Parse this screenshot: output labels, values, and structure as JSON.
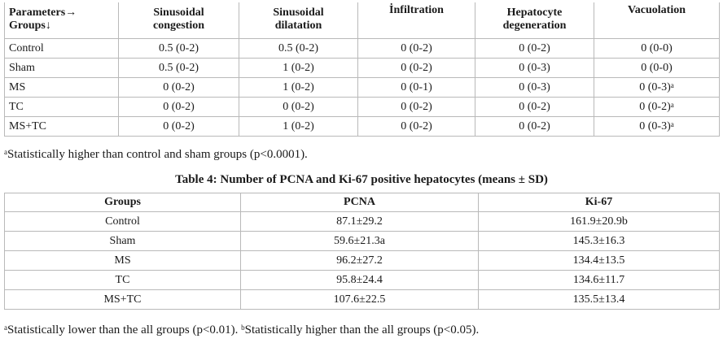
{
  "table3": {
    "headers": [
      {
        "line1": "Parameters→",
        "line2": "Groups↓"
      },
      {
        "line1": "Sinusoidal",
        "line2": "congestion"
      },
      {
        "line1": "Sinusoidal",
        "line2": "dilatation"
      },
      {
        "line1": "İnfiltration",
        "line2": ""
      },
      {
        "line1": "Hepatocyte",
        "line2": "degeneration"
      },
      {
        "line1": "Vacuolation",
        "line2": ""
      }
    ],
    "rows": [
      {
        "group": "Control",
        "c1": "0.5 (0-2)",
        "c2": "0.5 (0-2)",
        "c3": "0 (0-2)",
        "c4": "0 (0-2)",
        "c5": "0 (0-0)",
        "c5_sup": ""
      },
      {
        "group": "Sham",
        "c1": "0.5 (0-2)",
        "c2": "1 (0-2)",
        "c3": "0 (0-2)",
        "c4": "0 (0-3)",
        "c5": "0 (0-0)",
        "c5_sup": ""
      },
      {
        "group": "MS",
        "c1": "0 (0-2)",
        "c2": "1 (0-2)",
        "c3": "0 (0-1)",
        "c4": "0 (0-3)",
        "c5": "0 (0-3)",
        "c5_sup": "a"
      },
      {
        "group": "TC",
        "c1": "0 (0-2)",
        "c2": "0 (0-2)",
        "c3": "0 (0-2)",
        "c4": "0 (0-2)",
        "c5": "0 (0-2)",
        "c5_sup": "a"
      },
      {
        "group": "MS+TC",
        "c1": "0 (0-2)",
        "c2": "1 (0-2)",
        "c3": "0 (0-2)",
        "c4": "0 (0-2)",
        "c5": "0 (0-3)",
        "c5_sup": "a"
      }
    ],
    "footnote": {
      "sup": "a",
      "text": "Statistically higher than control and sham groups (p<0.0001)."
    }
  },
  "table4": {
    "caption": "Table 4: Number of PCNA and Ki-67 positive hepatocytes (means ± SD)",
    "headers": [
      "Groups",
      "PCNA",
      "Ki-67"
    ],
    "rows": [
      {
        "group": "Control",
        "pcna": "87.1±29.2",
        "ki67": "161.9±20.9b"
      },
      {
        "group": "Sham",
        "pcna": "59.6±21.3a",
        "ki67": "145.3±16.3"
      },
      {
        "group": "MS",
        "pcna": "96.2±27.2",
        "ki67": "134.4±13.5"
      },
      {
        "group": "TC",
        "pcna": "95.8±24.4",
        "ki67": "134.6±11.7"
      },
      {
        "group": "MS+TC",
        "pcna": "107.6±22.5",
        "ki67": "135.5±13.4"
      }
    ],
    "footnote": {
      "sup_a": "a",
      "text_a": "Statistically lower than the all groups (p<0.01). ",
      "sup_b": "b",
      "text_b": "Statistically higher than the all groups (p<0.05)."
    }
  }
}
